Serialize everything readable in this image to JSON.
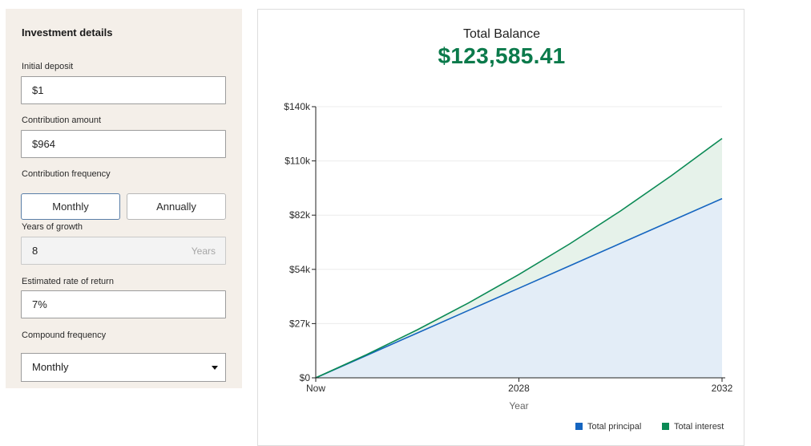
{
  "panel": {
    "title": "Investment details",
    "initial_deposit": {
      "label": "Initial deposit",
      "value": "$1"
    },
    "contribution_amount": {
      "label": "Contribution amount",
      "value": "$964"
    },
    "contribution_frequency": {
      "label": "Contribution frequency",
      "options": [
        "Monthly",
        "Annually"
      ],
      "selected": "Monthly"
    },
    "years_of_growth": {
      "label": "Years of growth",
      "value": "8",
      "suffix": "Years"
    },
    "rate_of_return": {
      "label": "Estimated rate of return",
      "value": "7%"
    },
    "compound_frequency": {
      "label": "Compound frequency",
      "value": "Monthly"
    }
  },
  "summary": {
    "label": "Total Balance",
    "value": "$123,585.41"
  },
  "legend": {
    "principal": "Total principal",
    "interest": "Total interest"
  },
  "colors": {
    "principal": "#1565c0",
    "interest": "#0b8a55",
    "balance_text": "#0b7a4b"
  },
  "chart_data": {
    "type": "area",
    "xlabel": "Year",
    "x_ticks": [
      "Now",
      "2028",
      "2032"
    ],
    "y_ticks": [
      "$0",
      "$27k",
      "$54k",
      "$82k",
      "$110k",
      "$140k"
    ],
    "ylim": [
      0,
      140000
    ],
    "grid": true,
    "legend_position": "bottom-right",
    "x": [
      0,
      1,
      2,
      3,
      4,
      5,
      6,
      7,
      8
    ],
    "series": [
      {
        "name": "Total principal",
        "values": [
          1,
          11569,
          23137,
          34705,
          46273,
          57841,
          69409,
          80977,
          92545
        ]
      },
      {
        "name": "Total interest",
        "values": [
          1,
          11970,
          24810,
          38580,
          53350,
          69180,
          86150,
          104350,
          123585
        ]
      }
    ]
  }
}
